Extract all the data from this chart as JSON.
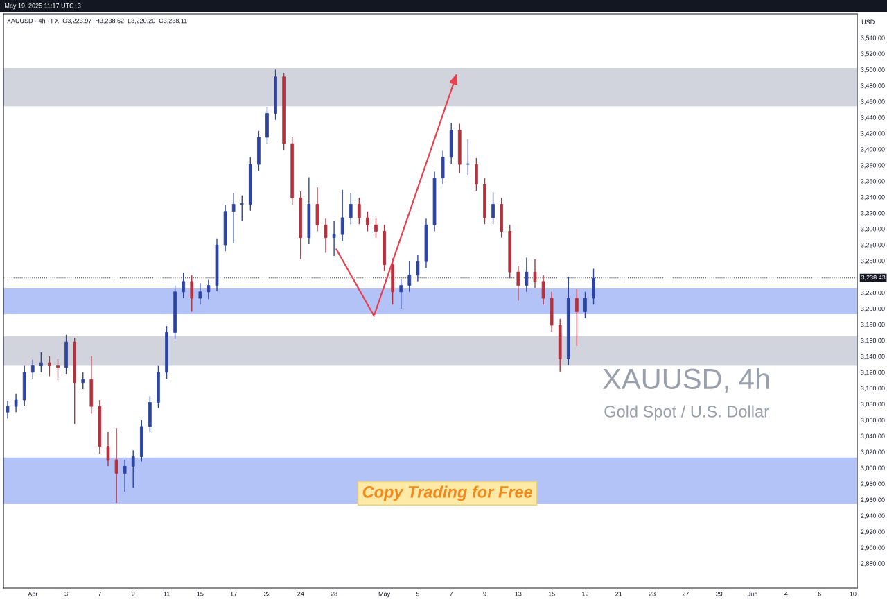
{
  "chart_data": {
    "type": "candlestick",
    "title": "XAUUSD · 4h · FX  O3,223.97  H3,238.62  L3,220.20  C3,238.11",
    "subtitle": "May 19, 2025 11:17 UTC+3",
    "ylabel": "USD",
    "annotations": [
      "XAUUSD, 4h",
      "Gold Spot / U.S. Dollar",
      "Copy Trading for Free"
    ],
    "categories": [
      null,
      null,
      null,
      "Apr",
      null,
      null,
      null,
      "3",
      null,
      null,
      null,
      "7",
      null,
      null,
      null,
      "9",
      null,
      null,
      null,
      "11",
      null,
      null,
      null,
      "15",
      null,
      null,
      null,
      "17",
      null,
      null,
      null,
      "22",
      null,
      null,
      null,
      "24",
      null,
      null,
      null,
      "28",
      null,
      null,
      null,
      null,
      null,
      "May",
      null,
      null,
      null,
      "5",
      null,
      null,
      null,
      "7",
      null,
      null,
      null,
      "9",
      null,
      null,
      null,
      "13",
      null,
      null,
      null,
      "15",
      null,
      null,
      null,
      "19",
      null,
      null,
      null,
      "21",
      null,
      null,
      null,
      "23",
      null,
      null,
      null,
      "27",
      null,
      null,
      null,
      "29",
      null,
      null,
      null,
      "Jun",
      null,
      null,
      null,
      "4",
      null,
      null,
      null,
      "6",
      null,
      null,
      null,
      "10"
    ],
    "ohlc": [
      [
        3070,
        3084,
        3062,
        3077
      ],
      [
        3077,
        3093,
        3070,
        3085
      ],
      [
        3085,
        3128,
        3078,
        3120
      ],
      [
        3120,
        3136,
        3112,
        3128
      ],
      [
        3128,
        3145,
        3120,
        3132
      ],
      [
        3132,
        3140,
        3115,
        3128
      ],
      [
        3128,
        3137,
        3110,
        3126
      ],
      [
        3126,
        3167,
        3118,
        3158
      ],
      [
        3158,
        3163,
        3055,
        3107
      ],
      [
        3107,
        3120,
        3099,
        3111
      ],
      [
        3111,
        3140,
        3068,
        3077
      ],
      [
        3077,
        3085,
        3018,
        3027
      ],
      [
        3027,
        3045,
        3002,
        3010
      ],
      [
        3010,
        3050,
        2956,
        2993
      ],
      [
        2993,
        3010,
        2970,
        3002
      ],
      [
        3002,
        3022,
        2975,
        3014
      ],
      [
        3014,
        3060,
        3008,
        3052
      ],
      [
        3052,
        3090,
        3045,
        3082
      ],
      [
        3082,
        3128,
        3075,
        3120
      ],
      [
        3120,
        3178,
        3112,
        3170
      ],
      [
        3170,
        3229,
        3162,
        3221
      ],
      [
        3221,
        3245,
        3213,
        3234
      ],
      [
        3234,
        3242,
        3196,
        3213
      ],
      [
        3213,
        3232,
        3205,
        3221
      ],
      [
        3221,
        3236,
        3212,
        3229
      ],
      [
        3229,
        3288,
        3222,
        3280
      ],
      [
        3280,
        3330,
        3272,
        3322
      ],
      [
        3322,
        3345,
        3282,
        3331
      ],
      [
        3331,
        3342,
        3310,
        3331
      ],
      [
        3331,
        3390,
        3323,
        3381
      ],
      [
        3381,
        3423,
        3373,
        3415
      ],
      [
        3415,
        3453,
        3407,
        3445
      ],
      [
        3445,
        3500,
        3437,
        3491
      ],
      [
        3491,
        3496,
        3399,
        3407
      ],
      [
        3407,
        3415,
        3330,
        3339
      ],
      [
        3339,
        3347,
        3262,
        3289
      ],
      [
        3289,
        3365,
        3281,
        3331
      ],
      [
        3331,
        3352,
        3297,
        3305
      ],
      [
        3305,
        3313,
        3270,
        3289
      ],
      [
        3289,
        3310,
        3266,
        3293
      ],
      [
        3293,
        3349,
        3285,
        3314
      ],
      [
        3314,
        3345,
        3306,
        3331
      ],
      [
        3331,
        3339,
        3306,
        3314
      ],
      [
        3314,
        3322,
        3297,
        3305
      ],
      [
        3305,
        3313,
        3289,
        3297
      ],
      [
        3297,
        3305,
        3247,
        3255
      ],
      [
        3255,
        3263,
        3205,
        3221
      ],
      [
        3221,
        3237,
        3200,
        3229
      ],
      [
        3229,
        3260,
        3221,
        3242
      ],
      [
        3242,
        3267,
        3234,
        3259
      ],
      [
        3259,
        3313,
        3251,
        3305
      ],
      [
        3305,
        3372,
        3297,
        3364
      ],
      [
        3364,
        3398,
        3356,
        3390
      ],
      [
        3390,
        3433,
        3382,
        3424
      ],
      [
        3424,
        3432,
        3370,
        3381
      ],
      [
        3381,
        3413,
        3367,
        3381
      ],
      [
        3381,
        3389,
        3348,
        3356
      ],
      [
        3356,
        3364,
        3306,
        3314
      ],
      [
        3314,
        3346,
        3306,
        3331
      ],
      [
        3331,
        3339,
        3289,
        3297
      ],
      [
        3297,
        3305,
        3238,
        3246
      ],
      [
        3246,
        3254,
        3210,
        3229
      ],
      [
        3229,
        3264,
        3221,
        3246
      ],
      [
        3246,
        3262,
        3226,
        3234
      ],
      [
        3234,
        3242,
        3205,
        3213
      ],
      [
        3213,
        3221,
        3171,
        3179
      ],
      [
        3179,
        3187,
        3121,
        3137
      ],
      [
        3137,
        3240,
        3129,
        3213
      ],
      [
        3213,
        3225,
        3153,
        3196
      ],
      [
        3196,
        3221,
        3188,
        3213
      ],
      [
        3213,
        3250,
        3205,
        3238
      ],
      null,
      null,
      null,
      null,
      null,
      null,
      null,
      null,
      null,
      null,
      null,
      null,
      null,
      null,
      null,
      null,
      null,
      null,
      null,
      null,
      null,
      null,
      null,
      null,
      null,
      null,
      null,
      null,
      null,
      null,
      null
    ],
    "colors": [
      "#2d44a0",
      "#2d44a0",
      "#2d44a0",
      "#2d44a0",
      "#2d44a0",
      "#b2323e",
      "#b2323e",
      "#2d44a0",
      "#b2323e",
      "#2d44a0",
      "#b2323e",
      "#b2323e",
      "#b2323e",
      "#b2323e",
      "#2d44a0",
      "#2d44a0",
      "#2d44a0",
      "#2d44a0",
      "#2d44a0",
      "#2d44a0",
      "#2d44a0",
      "#2d44a0",
      "#b2323e",
      "#2d44a0",
      "#2d44a0",
      "#2d44a0",
      "#2d44a0",
      "#2d44a0",
      "#2d44a0",
      "#2d44a0",
      "#2d44a0",
      "#2d44a0",
      "#2d44a0",
      "#b2323e",
      "#b2323e",
      "#b2323e",
      "#2d44a0",
      "#b2323e",
      "#b2323e",
      "#2d44a0",
      "#2d44a0",
      "#2d44a0",
      "#b2323e",
      "#b2323e",
      "#b2323e",
      "#b2323e",
      "#b2323e",
      "#2d44a0",
      "#2d44a0",
      "#2d44a0",
      "#2d44a0",
      "#2d44a0",
      "#2d44a0",
      "#2d44a0",
      "#b2323e",
      "#2d44a0",
      "#b2323e",
      "#b2323e",
      "#2d44a0",
      "#b2323e",
      "#b2323e",
      "#b2323e",
      "#2d44a0",
      "#b2323e",
      "#b2323e",
      "#b2323e",
      "#b2323e",
      "#2d44a0",
      "#b2323e",
      "#2d44a0",
      "#2d44a0",
      null,
      null,
      null,
      null,
      null,
      null,
      null,
      null,
      null,
      null,
      null,
      null,
      null,
      null,
      null,
      null,
      null,
      null,
      null,
      null,
      null,
      null,
      null,
      null,
      null,
      null,
      null,
      null,
      null,
      null,
      null
    ],
    "ylim": [
      2849,
      3570
    ],
    "yticks": [
      {
        "value": 2880,
        "label": "2,880.00"
      },
      {
        "value": 2900,
        "label": "2,900.00"
      },
      {
        "value": 2920,
        "label": "2,920.00"
      },
      {
        "value": 2940,
        "label": "2,940.00"
      },
      {
        "value": 2960,
        "label": "2,960.00"
      },
      {
        "value": 2980,
        "label": "2,980.00"
      },
      {
        "value": 3000,
        "label": "3,000.00"
      },
      {
        "value": 3020,
        "label": "3,020.00"
      },
      {
        "value": 3040,
        "label": "3,040.00"
      },
      {
        "value": 3060,
        "label": "3,060.00"
      },
      {
        "value": 3080,
        "label": "3,080.00"
      },
      {
        "value": 3100,
        "label": "3,100.00"
      },
      {
        "value": 3120,
        "label": "3,120.00"
      },
      {
        "value": 3140,
        "label": "3,140.00"
      },
      {
        "value": 3160,
        "label": "3,160.00"
      },
      {
        "value": 3180,
        "label": "3,180.00"
      },
      {
        "value": 3200,
        "label": "3,200.00"
      },
      {
        "value": 3220,
        "label": "3,220.00"
      },
      {
        "value": 3260,
        "label": "3,260.00"
      },
      {
        "value": 3280,
        "label": "3,280.00"
      },
      {
        "value": 3300,
        "label": "3,300.00"
      },
      {
        "value": 3320,
        "label": "3,320.00"
      },
      {
        "value": 3340,
        "label": "3,340.00"
      },
      {
        "value": 3360,
        "label": "3,360.00"
      },
      {
        "value": 3380,
        "label": "3,380.00"
      },
      {
        "value": 3400,
        "label": "3,400.00"
      },
      {
        "value": 3420,
        "label": "3,420.00"
      },
      {
        "value": 3440,
        "label": "3,440.00"
      },
      {
        "value": 3460,
        "label": "3,460.00"
      },
      {
        "value": 3480,
        "label": "3,480.00"
      },
      {
        "value": 3500,
        "label": "3,500.00"
      },
      {
        "value": 3520,
        "label": "3,520.00"
      },
      {
        "value": 3540,
        "label": "3,540.00"
      }
    ],
    "ref_lines": [
      {
        "axis": "y",
        "value": 3238.43,
        "label": "3,238.43",
        "color": "#444444",
        "line_style": "dotted"
      }
    ],
    "bands": [
      {
        "axis": "y",
        "from": 3454,
        "to": 3502,
        "color": "#d1d4dc"
      },
      {
        "axis": "y",
        "from": 3193,
        "to": 3226,
        "color": "#b3c3f7"
      },
      {
        "axis": "y",
        "from": 3128,
        "to": 3165,
        "color": "#d1d4dc"
      },
      {
        "axis": "y",
        "from": 2955,
        "to": 3013,
        "color": "#b3c3f7"
      }
    ],
    "grid": false
  }
}
